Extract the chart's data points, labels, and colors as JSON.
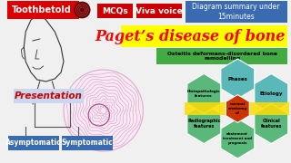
{
  "bg_color": "#f0f0f0",
  "title": "Paget’s disease of bone",
  "title_color": "#ff0000",
  "title_bg": "#ffff00",
  "subtitle": "Osteitis deformans-disordered bone\nremodelling",
  "subtitle_color": "#006400",
  "top_left_label": "Toothbetold",
  "top_left_bg": "#dd0000",
  "top_left_fg": "#ffffff",
  "mcq_label": "MCQs",
  "mcq_bg": "#cc0000",
  "mcq_fg": "#ffffff",
  "viva_label": "Viva voice",
  "viva_bg": "#cc0000",
  "viva_fg": "#ffffff",
  "diagram_label": "Diagram summary under\n15minutes",
  "diagram_bg": "#3a6ab0",
  "diagram_fg": "#ffffff",
  "presentation_label": "Presentation",
  "presentation_color": "#cc0000",
  "asymptomatic_label": "Asymptomatic",
  "asymptomatic_bg": "#3a6ab0",
  "symptomatic_label": "Symptomatic",
  "symptomatic_bg": "#3a6ab0",
  "hex_teal": "#5bb8b8",
  "hex_green": "#5ab87a",
  "center_hex_color": "#cc3300",
  "yellow_band": "#ffdd00",
  "face_color": "#333333",
  "histology_bg": "#f8eaf4",
  "histology_line": "#cc77aa"
}
